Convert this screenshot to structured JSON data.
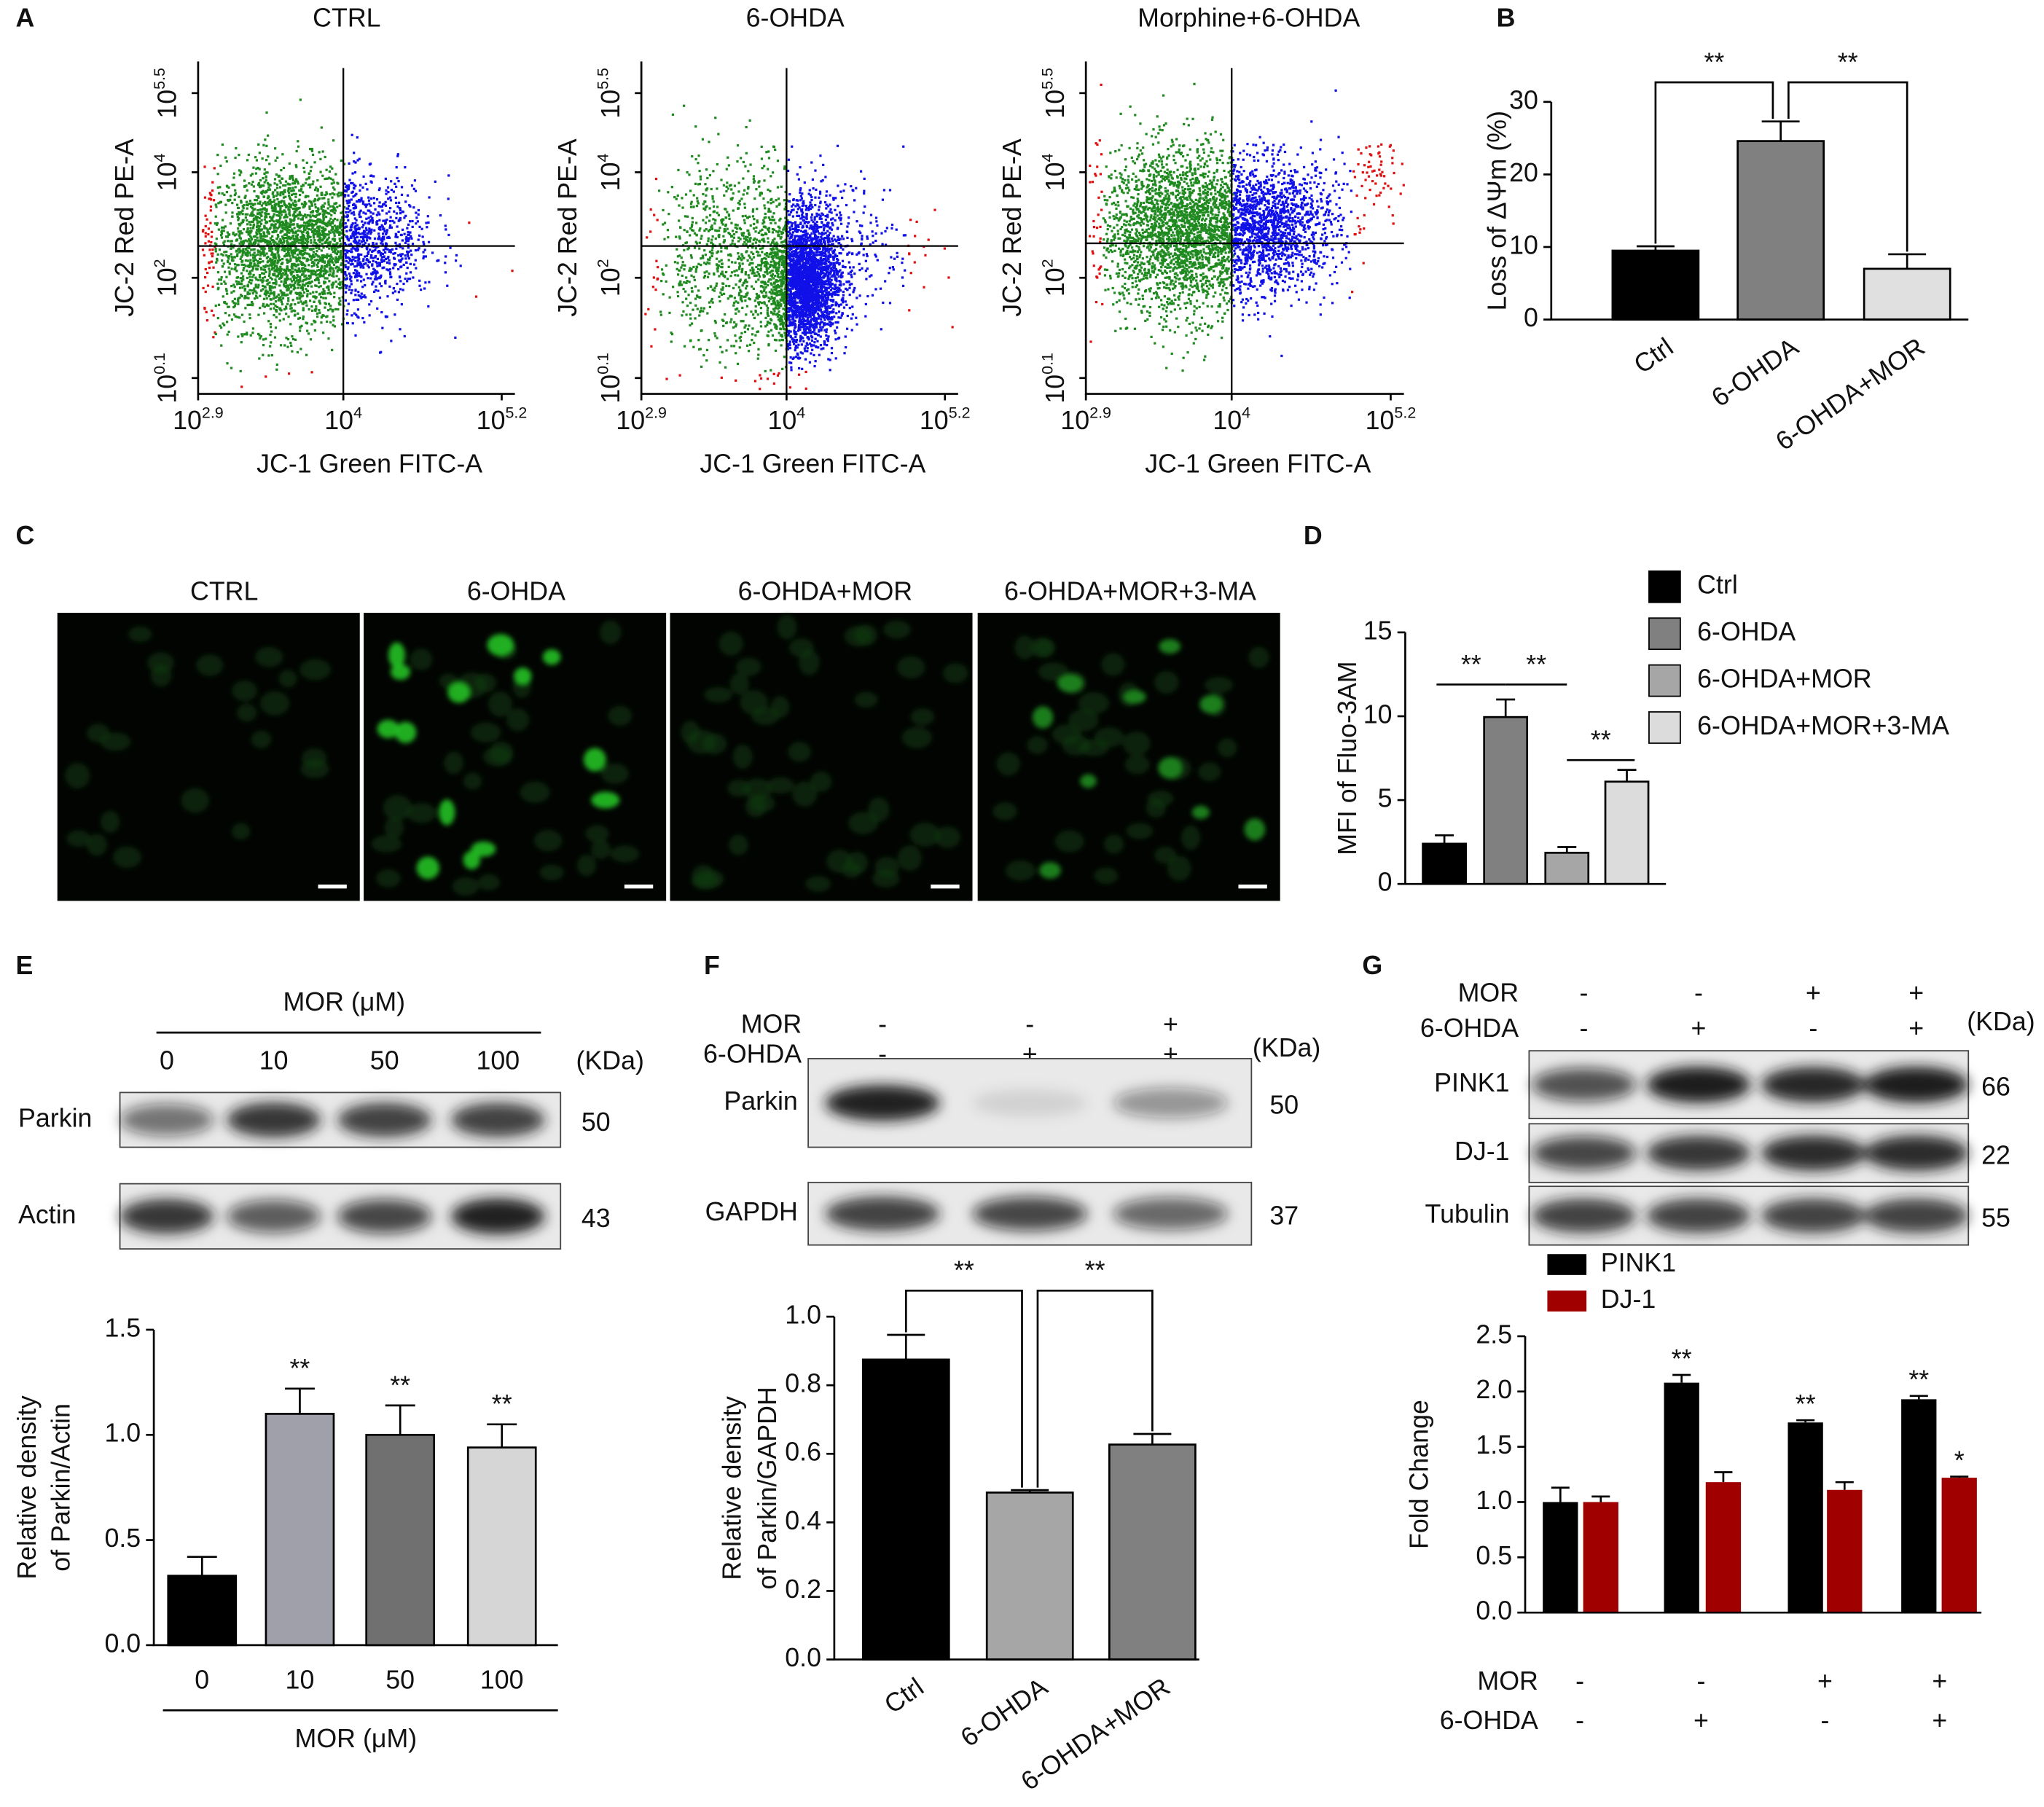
{
  "panel_labels": [
    "A",
    "B",
    "C",
    "D",
    "E",
    "F",
    "G"
  ],
  "chart_data": [
    {
      "type": "flow",
      "title": "CTRL",
      "xlabel": "JC-1 Green FITC-A",
      "ylabel": "JC-2 Red PE-A",
      "xscale": "log",
      "yscale": "log",
      "xlim": [
        794.3,
        199526
      ],
      "ylim": [
        0.631,
        1258925
      ],
      "xticks": [
        {
          "value": 794.3,
          "label": "10^2.9"
        },
        {
          "value": 10000,
          "label": "10^4"
        },
        {
          "value": 158489,
          "label": "10^5.2"
        }
      ],
      "yticks": [
        {
          "value": 1.259,
          "label": "10^0.1"
        },
        {
          "value": 100,
          "label": "10^2"
        },
        {
          "value": 10000,
          "label": "10^4"
        },
        {
          "value": 316228,
          "label": "10^5.5"
        }
      ],
      "quadrant": [
        10000,
        400
      ]
    },
    {
      "type": "flow",
      "title": "6-OHDA",
      "xlabel": "JC-1 Green FITC-A",
      "ylabel": "JC-2 Red PE-A",
      "xscale": "log",
      "yscale": "log",
      "xlim": [
        794.3,
        199526
      ],
      "ylim": [
        0.631,
        1258925
      ],
      "xticks": [
        {
          "value": 794.3,
          "label": "10^2.9"
        },
        {
          "value": 10000,
          "label": "10^4"
        },
        {
          "value": 158489,
          "label": "10^5.2"
        }
      ],
      "yticks": [
        {
          "value": 1.259,
          "label": "10^0.1"
        },
        {
          "value": 100,
          "label": "10^2"
        },
        {
          "value": 10000,
          "label": "10^4"
        },
        {
          "value": 316228,
          "label": "10^5.5"
        }
      ],
      "quadrant": [
        10000,
        400
      ]
    },
    {
      "type": "flow",
      "title": "Morphine+6-OHDA",
      "xlabel": "JC-1 Green FITC-A",
      "ylabel": "JC-2 Red PE-A",
      "xscale": "log",
      "yscale": "log",
      "xlim": [
        794.3,
        199526
      ],
      "ylim": [
        0.631,
        1258925
      ],
      "xticks": [
        {
          "value": 794.3,
          "label": "10^2.9"
        },
        {
          "value": 10000,
          "label": "10^4"
        },
        {
          "value": 158489,
          "label": "10^5.2"
        }
      ],
      "yticks": [
        {
          "value": 1.259,
          "label": "10^0.1"
        },
        {
          "value": 100,
          "label": "10^2"
        },
        {
          "value": 10000,
          "label": "10^4"
        },
        {
          "value": 316228,
          "label": "10^5.5"
        }
      ],
      "quadrant": [
        10000,
        450
      ]
    },
    {
      "type": "bar",
      "ylabel": "Loss of ΔΨm (%)",
      "categories": [
        "Ctrl",
        "6-OHDA",
        "6-OHDA+MOR"
      ],
      "values": [
        9.5,
        24.6,
        7.0
      ],
      "errors": [
        0.6,
        2.7,
        2.0
      ],
      "colors": [
        "#000000",
        "#808080",
        "#e0e0e0"
      ],
      "ylim": [
        0,
        30
      ],
      "yticks": [
        0,
        10,
        20,
        30
      ],
      "comparisons": [
        {
          "from": 0,
          "to": 1,
          "label": "**"
        },
        {
          "from": 1,
          "to": 2,
          "label": "**"
        }
      ]
    },
    {
      "type": "bar",
      "ylabel": "MFI of Fluo-3AM",
      "categories": [
        "Ctrl",
        "6-OHDA",
        "6-OHDA+MOR",
        "6-OHDA+MOR+3-MA"
      ],
      "values": [
        2.4,
        9.95,
        1.86,
        6.1
      ],
      "errors": [
        0.5,
        1.05,
        0.34,
        0.7
      ],
      "colors": [
        "#000000",
        "#808080",
        "#a6a6a6",
        "#dcdcdc"
      ],
      "ylim": [
        0,
        15
      ],
      "yticks": [
        0,
        5,
        10,
        15
      ],
      "legend": "right",
      "comparisons": [
        {
          "from": 0,
          "to": 1,
          "label": "**"
        },
        {
          "from": 1,
          "to": 2,
          "label": "**"
        },
        {
          "from": 2,
          "to": 3,
          "label": "**"
        }
      ]
    },
    {
      "type": "bar",
      "ylabel": [
        "Relative density",
        "of Parkin/Actin"
      ],
      "xlabel": "MOR (μM)",
      "categories": [
        "0",
        "10",
        "50",
        "100"
      ],
      "values": [
        0.33,
        1.1,
        1.0,
        0.94
      ],
      "errors": [
        0.09,
        0.12,
        0.14,
        0.11
      ],
      "colors": [
        "#000000",
        "#a0a0aa",
        "#707070",
        "#d6d6d6"
      ],
      "annotations": [
        null,
        "**",
        "**",
        "**"
      ],
      "ylim": [
        0,
        1.5
      ],
      "yticks": [
        {
          "value": 0,
          "label": "0.0"
        },
        {
          "value": 0.5,
          "label": "0.5"
        },
        {
          "value": 1,
          "label": "1.0"
        },
        {
          "value": 1.5,
          "label": "1.5"
        }
      ]
    },
    {
      "type": "bar",
      "ylabel": [
        "Relative density",
        "of Parkin/GAPDH"
      ],
      "categories": [
        "Ctrl",
        "6-OHDA",
        "6-OHDA+MOR"
      ],
      "values": [
        0.875,
        0.487,
        0.627
      ],
      "errors": [
        0.072,
        0.007,
        0.031
      ],
      "colors": [
        "#000000",
        "#a6a6a6",
        "#808080"
      ],
      "ylim": [
        0,
        1.0
      ],
      "yticks": [
        {
          "value": 0,
          "label": "0.0"
        },
        {
          "value": 0.2,
          "label": "0.2"
        },
        {
          "value": 0.4,
          "label": "0.4"
        },
        {
          "value": 0.6,
          "label": "0.6"
        },
        {
          "value": 0.8,
          "label": "0.8"
        },
        {
          "value": 1,
          "label": "1.0"
        }
      ],
      "comparisons": [
        {
          "from": 0,
          "to": 1,
          "label": "**"
        },
        {
          "from": 1,
          "to": 2,
          "label": "**"
        }
      ]
    },
    {
      "type": "grouped_bar",
      "ylabel": "Fold Change",
      "series": [
        {
          "name": "PINK1",
          "color": "#000000",
          "values": [
            1.0,
            2.08,
            1.72,
            1.93
          ],
          "errors": [
            0.13,
            0.07,
            0.02,
            0.03
          ],
          "annotations": [
            null,
            "**",
            "**",
            "**"
          ]
        },
        {
          "name": "DJ-1",
          "color": "#a00000",
          "values": [
            1.0,
            1.18,
            1.11,
            1.22
          ],
          "errors": [
            0.05,
            0.09,
            0.07,
            0.01
          ],
          "annotations": [
            null,
            null,
            null,
            "*"
          ]
        }
      ],
      "ylim": [
        0,
        2.5
      ],
      "yticks": [
        {
          "value": 0,
          "label": "0.0"
        },
        {
          "value": 0.5,
          "label": "0.5"
        },
        {
          "value": 1,
          "label": "1.0"
        },
        {
          "value": 1.5,
          "label": "1.5"
        },
        {
          "value": 2,
          "label": "2.0"
        },
        {
          "value": 2.5,
          "label": "2.5"
        }
      ],
      "conditions": [
        {
          "name": "MOR",
          "values": [
            "-",
            "-",
            "+",
            "+"
          ]
        },
        {
          "name": "6-OHDA",
          "values": [
            "-",
            "+",
            "-",
            "+"
          ]
        }
      ]
    }
  ],
  "micrographs": {
    "titles": [
      "CTRL",
      "6-OHDA",
      "6-OHDA+MOR",
      "6-OHDA+MOR+3-MA"
    ]
  },
  "blots": [
    {
      "header": "MOR (μM)",
      "lanes": [
        "0",
        "10",
        "50",
        "100"
      ],
      "unit": "(KDa)",
      "rows": [
        {
          "label": "Parkin",
          "kda": "50"
        },
        {
          "label": "Actin",
          "kda": "43"
        }
      ]
    },
    {
      "conditions": [
        {
          "name": "MOR",
          "values": [
            "-",
            "-",
            "+"
          ]
        },
        {
          "name": "6-OHDA",
          "values": [
            "-",
            "+",
            "+"
          ]
        }
      ],
      "unit": "(KDa)",
      "rows": [
        {
          "label": "Parkin",
          "kda": "50"
        },
        {
          "label": "GAPDH",
          "kda": "37"
        }
      ]
    },
    {
      "conditions": [
        {
          "name": "MOR",
          "values": [
            "-",
            "-",
            "+",
            "+"
          ]
        },
        {
          "name": "6-OHDA",
          "values": [
            "-",
            "+",
            "-",
            "+"
          ]
        }
      ],
      "unit": "(KDa)",
      "rows": [
        {
          "label": "PINK1",
          "kda": "66"
        },
        {
          "label": "DJ-1",
          "kda": "22"
        },
        {
          "label": "Tubulin",
          "kda": "55"
        }
      ]
    }
  ]
}
